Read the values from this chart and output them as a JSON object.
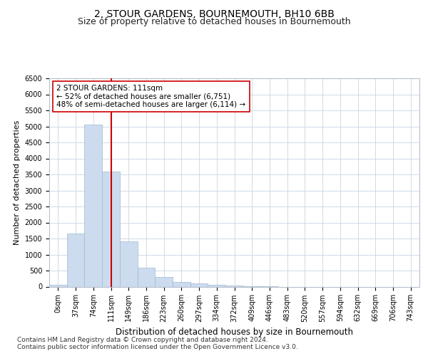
{
  "title": "2, STOUR GARDENS, BOURNEMOUTH, BH10 6BB",
  "subtitle": "Size of property relative to detached houses in Bournemouth",
  "xlabel": "Distribution of detached houses by size in Bournemouth",
  "ylabel": "Number of detached properties",
  "categories": [
    "0sqm",
    "37sqm",
    "74sqm",
    "111sqm",
    "149sqm",
    "186sqm",
    "223sqm",
    "260sqm",
    "297sqm",
    "334sqm",
    "372sqm",
    "409sqm",
    "446sqm",
    "483sqm",
    "520sqm",
    "557sqm",
    "594sqm",
    "632sqm",
    "669sqm",
    "706sqm",
    "743sqm"
  ],
  "values": [
    50,
    1650,
    5050,
    3600,
    1420,
    600,
    300,
    150,
    100,
    50,
    30,
    10,
    5,
    0,
    0,
    0,
    0,
    0,
    0,
    0,
    0
  ],
  "bar_color": "#ccdcee",
  "bar_edge_color": "#a0b8d0",
  "highlight_index": 3,
  "highlight_line_color": "#cc0000",
  "annotation_text": "2 STOUR GARDENS: 111sqm\n← 52% of detached houses are smaller (6,751)\n48% of semi-detached houses are larger (6,114) →",
  "annotation_box_color": "#ffffff",
  "annotation_box_edge_color": "#cc0000",
  "ylim": [
    0,
    6500
  ],
  "yticks": [
    0,
    500,
    1000,
    1500,
    2000,
    2500,
    3000,
    3500,
    4000,
    4500,
    5000,
    5500,
    6000,
    6500
  ],
  "grid_color": "#c8d4e3",
  "footer_text": "Contains HM Land Registry data © Crown copyright and database right 2024.\nContains public sector information licensed under the Open Government Licence v3.0.",
  "title_fontsize": 10,
  "subtitle_fontsize": 9,
  "xlabel_fontsize": 8.5,
  "ylabel_fontsize": 8,
  "tick_fontsize": 7,
  "footer_fontsize": 6.5,
  "annotation_fontsize": 7.5
}
